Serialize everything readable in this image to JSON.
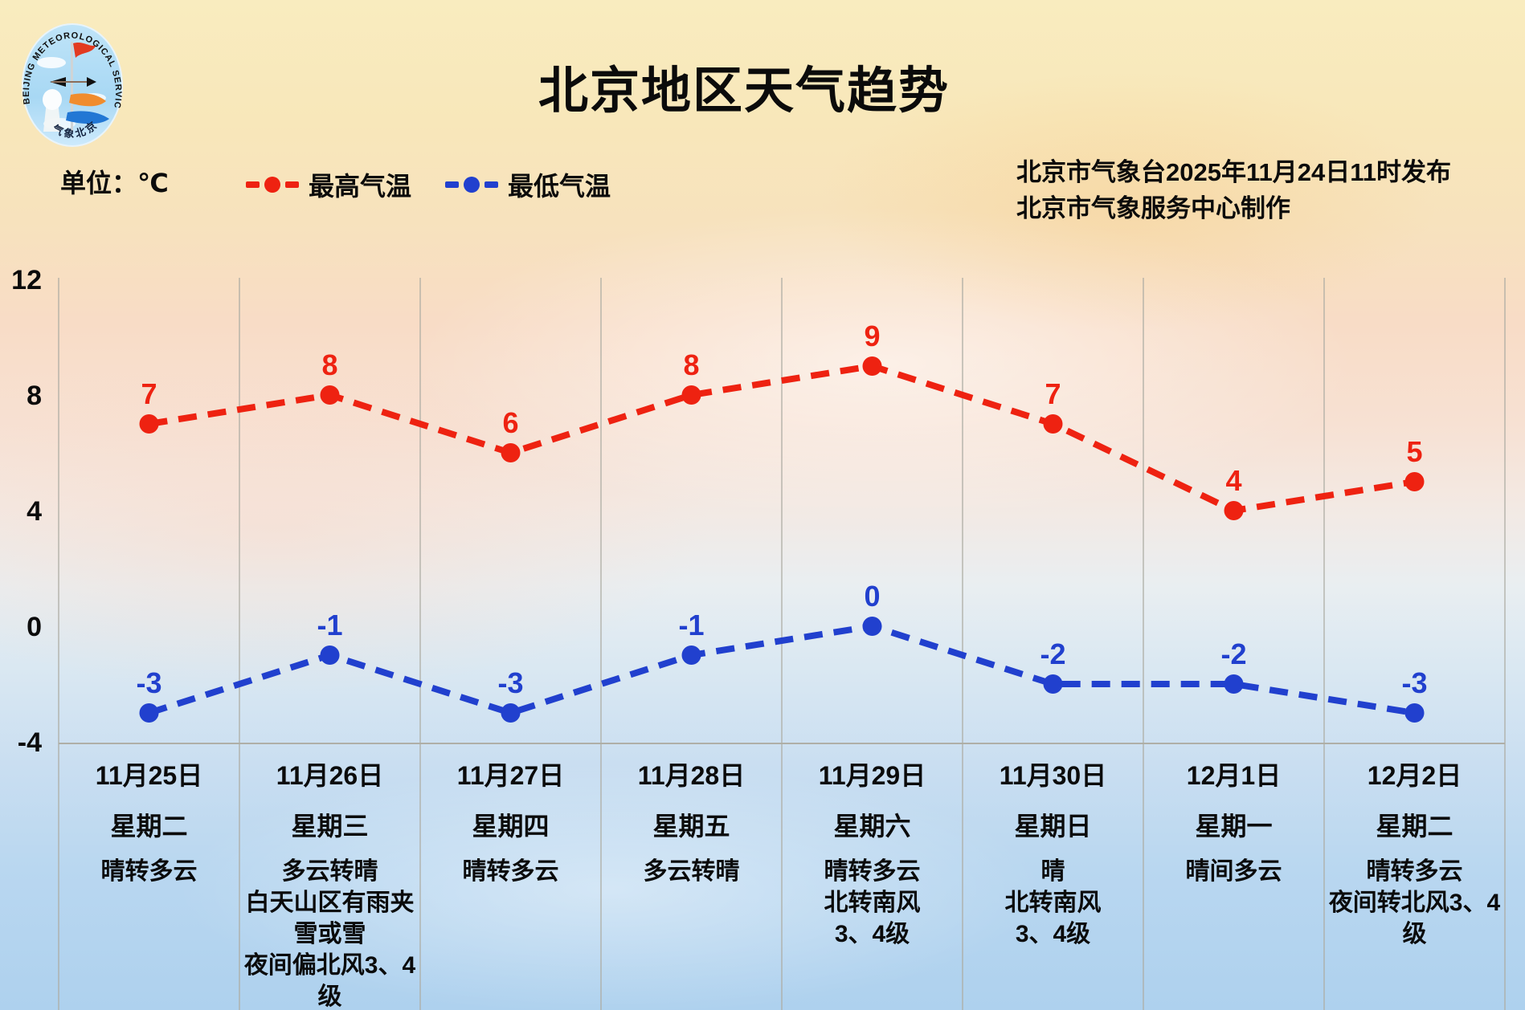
{
  "title": "北京地区天气趋势",
  "publisher": {
    "line1": "北京市气象台2025年11月24日11时发布",
    "line2": "北京市气象服务中心制作"
  },
  "legend": {
    "unit": "单位：℃",
    "max_label": "最高气温",
    "min_label": "最低气温"
  },
  "logo": {
    "ring_text": "BEIJING  METEOROLOGICAL  SERVICE",
    "bottom_text": "气象北京"
  },
  "colors": {
    "max_temp": "#ee2211",
    "min_temp": "#2140ce",
    "grid": "#aeada4",
    "text": "#0b0b0b"
  },
  "chart_data": {
    "type": "line",
    "title": "北京地区天气趋势",
    "unit": "℃",
    "ylim": [
      -4,
      12
    ],
    "yticks": [
      12,
      8,
      4,
      0,
      -4
    ],
    "grid": "vertical-column-separators",
    "legend_position": "top-left",
    "categories": [
      {
        "date": "11月25日",
        "weekday": "星期二",
        "weather_lines": [
          "晴转多云"
        ]
      },
      {
        "date": "11月26日",
        "weekday": "星期三",
        "weather_lines": [
          "多云转晴",
          "白天山区有雨夹",
          "雪或雪",
          "夜间偏北风3、4",
          "级"
        ]
      },
      {
        "date": "11月27日",
        "weekday": "星期四",
        "weather_lines": [
          "晴转多云"
        ]
      },
      {
        "date": "11月28日",
        "weekday": "星期五",
        "weather_lines": [
          "多云转晴"
        ]
      },
      {
        "date": "11月29日",
        "weekday": "星期六",
        "weather_lines": [
          "晴转多云",
          "北转南风",
          "3、4级"
        ]
      },
      {
        "date": "11月30日",
        "weekday": "星期日",
        "weather_lines": [
          "晴",
          "北转南风",
          "3、4级"
        ]
      },
      {
        "date": "12月1日",
        "weekday": "星期一",
        "weather_lines": [
          "晴间多云"
        ]
      },
      {
        "date": "12月2日",
        "weekday": "星期二",
        "weather_lines": [
          "晴转多云",
          "夜间转北风3、4",
          "级"
        ]
      }
    ],
    "series": [
      {
        "name": "最高气温",
        "color": "#ee2211",
        "values": [
          7,
          8,
          6,
          8,
          9,
          7,
          4,
          5
        ]
      },
      {
        "name": "最低气温",
        "color": "#2140ce",
        "values": [
          -3,
          -1,
          -3,
          -1,
          0,
          -2,
          -2,
          -3
        ]
      }
    ]
  }
}
